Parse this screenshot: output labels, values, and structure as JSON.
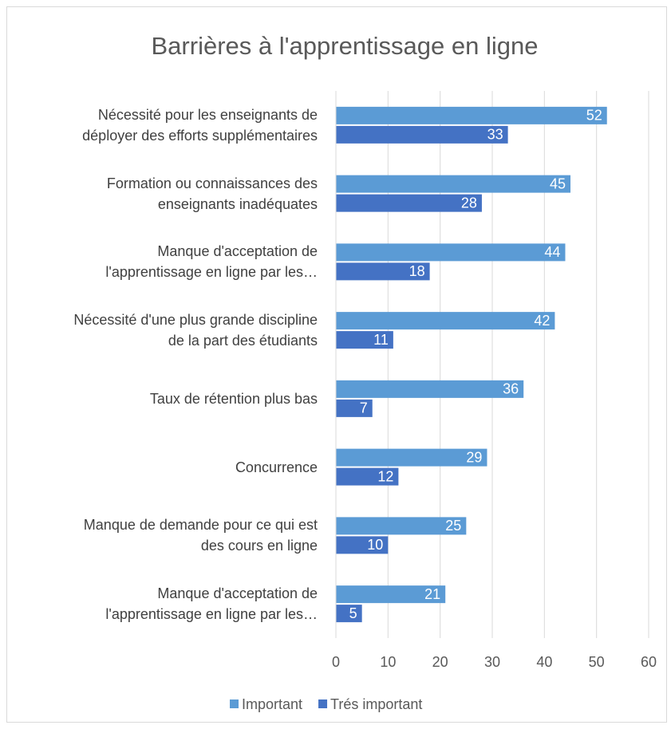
{
  "chart_data": {
    "type": "bar",
    "orientation": "horizontal",
    "title": "Barrières à l'apprentissage en ligne",
    "categories": [
      "Nécessité pour les enseignants de\ndéployer des efforts supplémentaires",
      "Formation ou connaissances des\nenseignants inadéquates",
      "Manque d'acceptation de\nl'apprentissage en ligne par les…",
      "Nécessité d'une plus grande discipline\nde la part des étudiants",
      "Taux de rétention plus bas",
      "Concurrence",
      "Manque de demande pour ce qui est\ndes cours en ligne",
      "Manque d'acceptation de\nl'apprentissage en ligne par les…"
    ],
    "series": [
      {
        "name": "Important",
        "color": "#5b9bd5",
        "values": [
          52,
          45,
          44,
          42,
          36,
          29,
          25,
          21
        ]
      },
      {
        "name": "Trés important",
        "color": "#4472c4",
        "values": [
          33,
          28,
          18,
          11,
          7,
          12,
          10,
          5
        ]
      }
    ],
    "xlim": [
      0,
      60
    ],
    "xticks": [
      0,
      10,
      20,
      30,
      40,
      50,
      60
    ],
    "grid": true,
    "legend": "bottom"
  }
}
